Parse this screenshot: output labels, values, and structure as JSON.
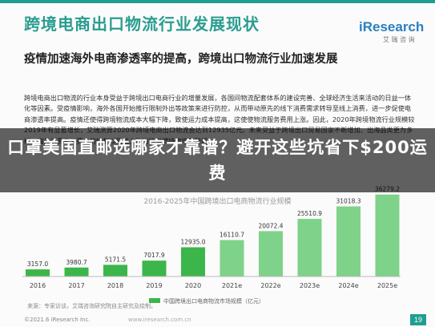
{
  "slide": {
    "main_title": "跨境电商出口物流行业发展现状",
    "brand": "iResearch",
    "brand_sub": "艾 瑞 咨 询",
    "subtitle": "疫情加速海外电商渗透率的提高，跨境出口物流行业加速发展",
    "paragraph": "跨境电商出口物流的行业本身受益于跨境出口电商行业的增量发展，各国间物流配套体系的建设完善、全球经济生活来活动的日益一体化等因素。受疫情影响，海外各国开始推行限制外出等政策来进行防控，从而带动原先的线下消费需求转导至线上消费，进一步促使电商渗透率提高。疫情还使得跨境物流成本大幅下降，致使运力成本提高，这使使物流服务费用上涨。因此，2020年跨境物流行业规模较2019年有显著增长，艾瑞测算2020年跨境电商出口物流会达到12935亿元。未来受益于跨境出口贸易国家不断增加、出海品类更为多样、海外消费者消费力的恢复以及线上购物的习惯持续培养跨境",
    "banner": "口罩美国直邮选哪家才靠谱？避开这些坑省下$200运费",
    "chart_subtitle": "2016-2025年中国跨境出口电商物流行业规模",
    "footnote": "来源：专家访谈，艾瑞咨询研究院自主研究及绘制。",
    "copyright": "©2021.6 iResearch Inc.",
    "footer_mid": "www.iresearch.com.cn",
    "page_number": "19",
    "legend_label": "中国跨境出口电商物流市场规模（亿元）"
  },
  "colors": {
    "bar_actual": "#3cb54a",
    "bar_forecast": "#7fd28a",
    "accent": "#1f9e8e"
  },
  "chart_data": {
    "type": "bar",
    "categories": [
      "2016",
      "2017",
      "2018",
      "2019",
      "2020",
      "2021e",
      "2022e",
      "2023e",
      "2024e",
      "2025e"
    ],
    "values": [
      3157.0,
      3980.7,
      5171.5,
      7017.9,
      12935.0,
      16110.7,
      20072.4,
      25510.9,
      31018.3,
      36279.2
    ],
    "value_labels": [
      "3157.0",
      "3980.7",
      "5171.5",
      "7017.9",
      "12935.0",
      "16110.7",
      "20072.4",
      "25510.9",
      "31018.3",
      "36279.2"
    ],
    "series_name": "中国跨境出口电商物流市场规模（亿元）",
    "ylim": [
      0,
      40000
    ],
    "legend": "bottom-left",
    "grid": false
  }
}
